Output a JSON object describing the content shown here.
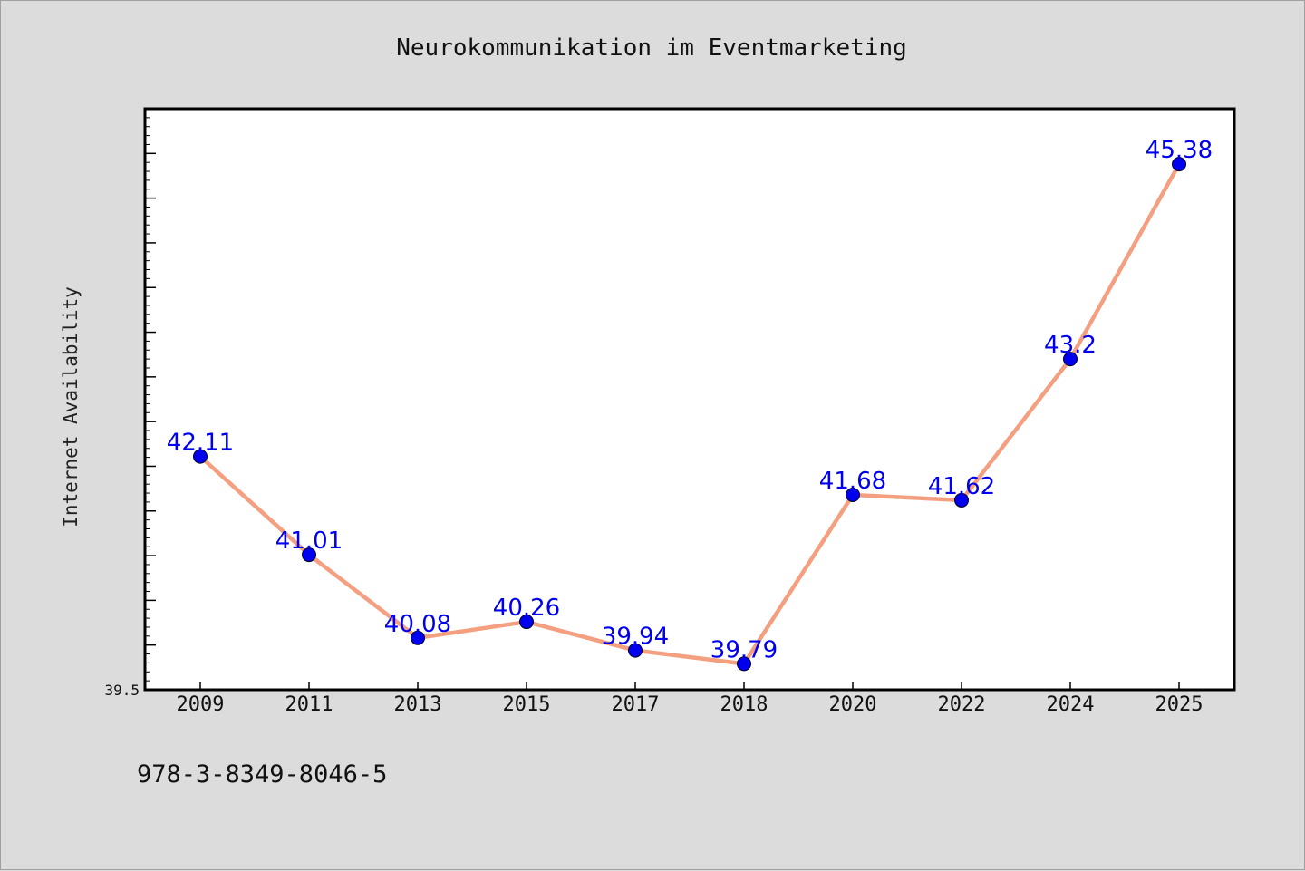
{
  "chart_data": {
    "type": "line",
    "title": "Neurokommunikation im Eventmarketing",
    "xlabel": "",
    "ylabel": "Internet Availability",
    "categories": [
      "2009",
      "2011",
      "2013",
      "2015",
      "2017",
      "2018",
      "2020",
      "2022",
      "2024",
      "2025"
    ],
    "series": [
      {
        "values": [
          42.11,
          41.01,
          40.08,
          40.26,
          39.94,
          39.79,
          41.68,
          41.62,
          43.2,
          45.38
        ],
        "data_labels": [
          "42.11",
          "41.01",
          "40.08",
          "40.26",
          "39.94",
          "39.79",
          "41.68",
          "41.62",
          "43.2",
          "45.38"
        ],
        "line_color": "#f4a080",
        "marker_color": "#0000ee"
      }
    ],
    "ylim": [
      39.5,
      46.0
    ],
    "ytick_labels": [
      "39.5"
    ],
    "grid": false,
    "legend": "none"
  },
  "footnote": "978-3-8349-8046-5"
}
